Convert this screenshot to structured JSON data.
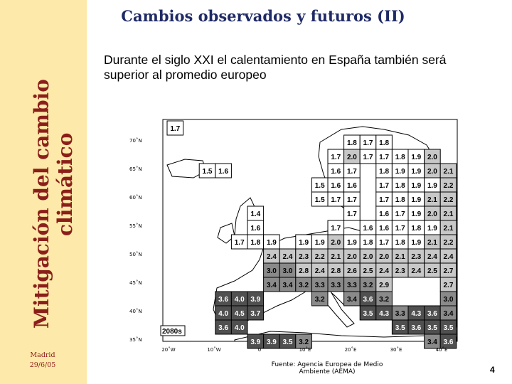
{
  "sidebar": {
    "title_line1": "Mitigación del cambio",
    "title_line2": "climático",
    "location": "Madrid",
    "date": "29/6/05",
    "bg_color": "#fde9a9",
    "title_color": "#8a1f1a"
  },
  "slide": {
    "title": "Cambios observados y futuros (II)",
    "subtitle": "Durante el siglo XXI el calentamiento en España también será superior al promedio europeo",
    "source": "Fuente: Agencia Europea de Medio Ambiente (AEMA)",
    "page_number": "4"
  },
  "map": {
    "period_label": "2080s",
    "lat_labels": [
      "70˚N",
      "65˚N",
      "60˚N",
      "55˚N",
      "50˚N",
      "45˚N",
      "40˚N",
      "35˚N"
    ],
    "lon_labels": [
      "20˚W",
      "10˚W",
      "0",
      "10˚E",
      "20˚E",
      "30˚E",
      "40˚E"
    ],
    "color_scale": {
      "below_2": "#ffffff",
      "2_to_3": "#c8c8c8",
      "3_to_3.5": "#8a8a8a",
      "above_3.5": "#505050"
    },
    "cells": [
      {
        "r": 0,
        "c": 0,
        "v": "1.7"
      },
      {
        "r": 1,
        "c": 11,
        "v": "1.8"
      },
      {
        "r": 1,
        "c": 12,
        "v": "1.7"
      },
      {
        "r": 1,
        "c": 13,
        "v": "1.8"
      },
      {
        "r": 2,
        "c": 10,
        "v": "1.7"
      },
      {
        "r": 2,
        "c": 11,
        "v": "2.0"
      },
      {
        "r": 2,
        "c": 12,
        "v": "1.7"
      },
      {
        "r": 2,
        "c": 13,
        "v": "1.7"
      },
      {
        "r": 2,
        "c": 14,
        "v": "1.8"
      },
      {
        "r": 2,
        "c": 15,
        "v": "1.9"
      },
      {
        "r": 2,
        "c": 16,
        "v": "2.0"
      },
      {
        "r": 3,
        "c": 2,
        "v": "1.5"
      },
      {
        "r": 3,
        "c": 3,
        "v": "1.6"
      },
      {
        "r": 3,
        "c": 10,
        "v": "1.6"
      },
      {
        "r": 3,
        "c": 11,
        "v": "1.7"
      },
      {
        "r": 3,
        "c": 13,
        "v": "1.8"
      },
      {
        "r": 3,
        "c": 14,
        "v": "1.9"
      },
      {
        "r": 3,
        "c": 15,
        "v": "1.9"
      },
      {
        "r": 3,
        "c": 16,
        "v": "2.0"
      },
      {
        "r": 3,
        "c": 17,
        "v": "2.1"
      },
      {
        "r": 4,
        "c": 9,
        "v": "1.5"
      },
      {
        "r": 4,
        "c": 10,
        "v": "1.6"
      },
      {
        "r": 4,
        "c": 11,
        "v": "1.6"
      },
      {
        "r": 4,
        "c": 13,
        "v": "1.7"
      },
      {
        "r": 4,
        "c": 14,
        "v": "1.8"
      },
      {
        "r": 4,
        "c": 15,
        "v": "1.9"
      },
      {
        "r": 4,
        "c": 16,
        "v": "1.9"
      },
      {
        "r": 4,
        "c": 17,
        "v": "2.2"
      },
      {
        "r": 5,
        "c": 9,
        "v": "1.5"
      },
      {
        "r": 5,
        "c": 10,
        "v": "1.7"
      },
      {
        "r": 5,
        "c": 11,
        "v": "1.7"
      },
      {
        "r": 5,
        "c": 13,
        "v": "1.7"
      },
      {
        "r": 5,
        "c": 14,
        "v": "1.8"
      },
      {
        "r": 5,
        "c": 15,
        "v": "1.9"
      },
      {
        "r": 5,
        "c": 16,
        "v": "2.1"
      },
      {
        "r": 5,
        "c": 17,
        "v": "2.2"
      },
      {
        "r": 6,
        "c": 5,
        "v": "1.4"
      },
      {
        "r": 6,
        "c": 11,
        "v": "1.7"
      },
      {
        "r": 6,
        "c": 13,
        "v": "1.6"
      },
      {
        "r": 6,
        "c": 14,
        "v": "1.7"
      },
      {
        "r": 6,
        "c": 15,
        "v": "1.9"
      },
      {
        "r": 6,
        "c": 16,
        "v": "2.0"
      },
      {
        "r": 6,
        "c": 17,
        "v": "2.1"
      },
      {
        "r": 7,
        "c": 5,
        "v": "1.6"
      },
      {
        "r": 7,
        "c": 10,
        "v": "1.7"
      },
      {
        "r": 7,
        "c": 12,
        "v": "1.6"
      },
      {
        "r": 7,
        "c": 13,
        "v": "1.6"
      },
      {
        "r": 7,
        "c": 14,
        "v": "1.7"
      },
      {
        "r": 7,
        "c": 15,
        "v": "1.8"
      },
      {
        "r": 7,
        "c": 16,
        "v": "1.9"
      },
      {
        "r": 7,
        "c": 17,
        "v": "2.1"
      },
      {
        "r": 8,
        "c": 4,
        "v": "1.7"
      },
      {
        "r": 8,
        "c": 5,
        "v": "1.8"
      },
      {
        "r": 8,
        "c": 6,
        "v": "1.9"
      },
      {
        "r": 8,
        "c": 8,
        "v": "1.9"
      },
      {
        "r": 8,
        "c": 9,
        "v": "1.9"
      },
      {
        "r": 8,
        "c": 10,
        "v": "2.0"
      },
      {
        "r": 8,
        "c": 11,
        "v": "1.9"
      },
      {
        "r": 8,
        "c": 12,
        "v": "1.8"
      },
      {
        "r": 8,
        "c": 13,
        "v": "1.7"
      },
      {
        "r": 8,
        "c": 14,
        "v": "1.8"
      },
      {
        "r": 8,
        "c": 15,
        "v": "1.9"
      },
      {
        "r": 8,
        "c": 16,
        "v": "2.1"
      },
      {
        "r": 8,
        "c": 17,
        "v": "2.2"
      },
      {
        "r": 9,
        "c": 6,
        "v": "2.4"
      },
      {
        "r": 9,
        "c": 7,
        "v": "2.4"
      },
      {
        "r": 9,
        "c": 8,
        "v": "2.3"
      },
      {
        "r": 9,
        "c": 9,
        "v": "2.2"
      },
      {
        "r": 9,
        "c": 10,
        "v": "2.1"
      },
      {
        "r": 9,
        "c": 11,
        "v": "2.0"
      },
      {
        "r": 9,
        "c": 12,
        "v": "2.0"
      },
      {
        "r": 9,
        "c": 13,
        "v": "2.0"
      },
      {
        "r": 9,
        "c": 14,
        "v": "2.1"
      },
      {
        "r": 9,
        "c": 15,
        "v": "2.3"
      },
      {
        "r": 9,
        "c": 16,
        "v": "2.4"
      },
      {
        "r": 9,
        "c": 17,
        "v": "2.4"
      },
      {
        "r": 10,
        "c": 6,
        "v": "3.0"
      },
      {
        "r": 10,
        "c": 7,
        "v": "3.0"
      },
      {
        "r": 10,
        "c": 8,
        "v": "2.8"
      },
      {
        "r": 10,
        "c": 9,
        "v": "2.4"
      },
      {
        "r": 10,
        "c": 10,
        "v": "2.8"
      },
      {
        "r": 10,
        "c": 11,
        "v": "2.6"
      },
      {
        "r": 10,
        "c": 12,
        "v": "2.5"
      },
      {
        "r": 10,
        "c": 13,
        "v": "2.4"
      },
      {
        "r": 10,
        "c": 14,
        "v": "2.3"
      },
      {
        "r": 10,
        "c": 15,
        "v": "2.4"
      },
      {
        "r": 10,
        "c": 16,
        "v": "2.5"
      },
      {
        "r": 10,
        "c": 17,
        "v": "2.7"
      },
      {
        "r": 11,
        "c": 6,
        "v": "3.4"
      },
      {
        "r": 11,
        "c": 7,
        "v": "3.4"
      },
      {
        "r": 11,
        "c": 8,
        "v": "3.2"
      },
      {
        "r": 11,
        "c": 9,
        "v": "3.3"
      },
      {
        "r": 11,
        "c": 10,
        "v": "3.3"
      },
      {
        "r": 11,
        "c": 11,
        "v": "3.3"
      },
      {
        "r": 11,
        "c": 12,
        "v": "3.2"
      },
      {
        "r": 11,
        "c": 13,
        "v": "2.9"
      },
      {
        "r": 11,
        "c": 17,
        "v": "2.7"
      },
      {
        "r": 12,
        "c": 3,
        "v": "3.6"
      },
      {
        "r": 12,
        "c": 4,
        "v": "4.0"
      },
      {
        "r": 12,
        "c": 5,
        "v": "3.9"
      },
      {
        "r": 12,
        "c": 9,
        "v": "3.2"
      },
      {
        "r": 12,
        "c": 11,
        "v": "3.4"
      },
      {
        "r": 12,
        "c": 12,
        "v": "3.6"
      },
      {
        "r": 12,
        "c": 13,
        "v": "3.2"
      },
      {
        "r": 12,
        "c": 17,
        "v": "3.0"
      },
      {
        "r": 13,
        "c": 3,
        "v": "4.0"
      },
      {
        "r": 13,
        "c": 4,
        "v": "4.5"
      },
      {
        "r": 13,
        "c": 5,
        "v": "3.7"
      },
      {
        "r": 13,
        "c": 12,
        "v": "3.5"
      },
      {
        "r": 13,
        "c": 13,
        "v": "4.3"
      },
      {
        "r": 13,
        "c": 14,
        "v": "3.3"
      },
      {
        "r": 13,
        "c": 15,
        "v": "4.3"
      },
      {
        "r": 13,
        "c": 16,
        "v": "3.6"
      },
      {
        "r": 13,
        "c": 17,
        "v": "3.4"
      },
      {
        "r": 14,
        "c": 3,
        "v": "3.6"
      },
      {
        "r": 14,
        "c": 4,
        "v": "4.0"
      },
      {
        "r": 14,
        "c": 14,
        "v": "3.5"
      },
      {
        "r": 14,
        "c": 15,
        "v": "3.6"
      },
      {
        "r": 14,
        "c": 16,
        "v": "3.5"
      },
      {
        "r": 14,
        "c": 17,
        "v": "3.5"
      },
      {
        "r": 15,
        "c": 5,
        "v": "3.9"
      },
      {
        "r": 15,
        "c": 6,
        "v": "3.9"
      },
      {
        "r": 15,
        "c": 7,
        "v": "3.5"
      },
      {
        "r": 15,
        "c": 8,
        "v": "3.2"
      },
      {
        "r": 15,
        "c": 16,
        "v": "3.4"
      },
      {
        "r": 15,
        "c": 17,
        "v": "3.6"
      }
    ]
  }
}
